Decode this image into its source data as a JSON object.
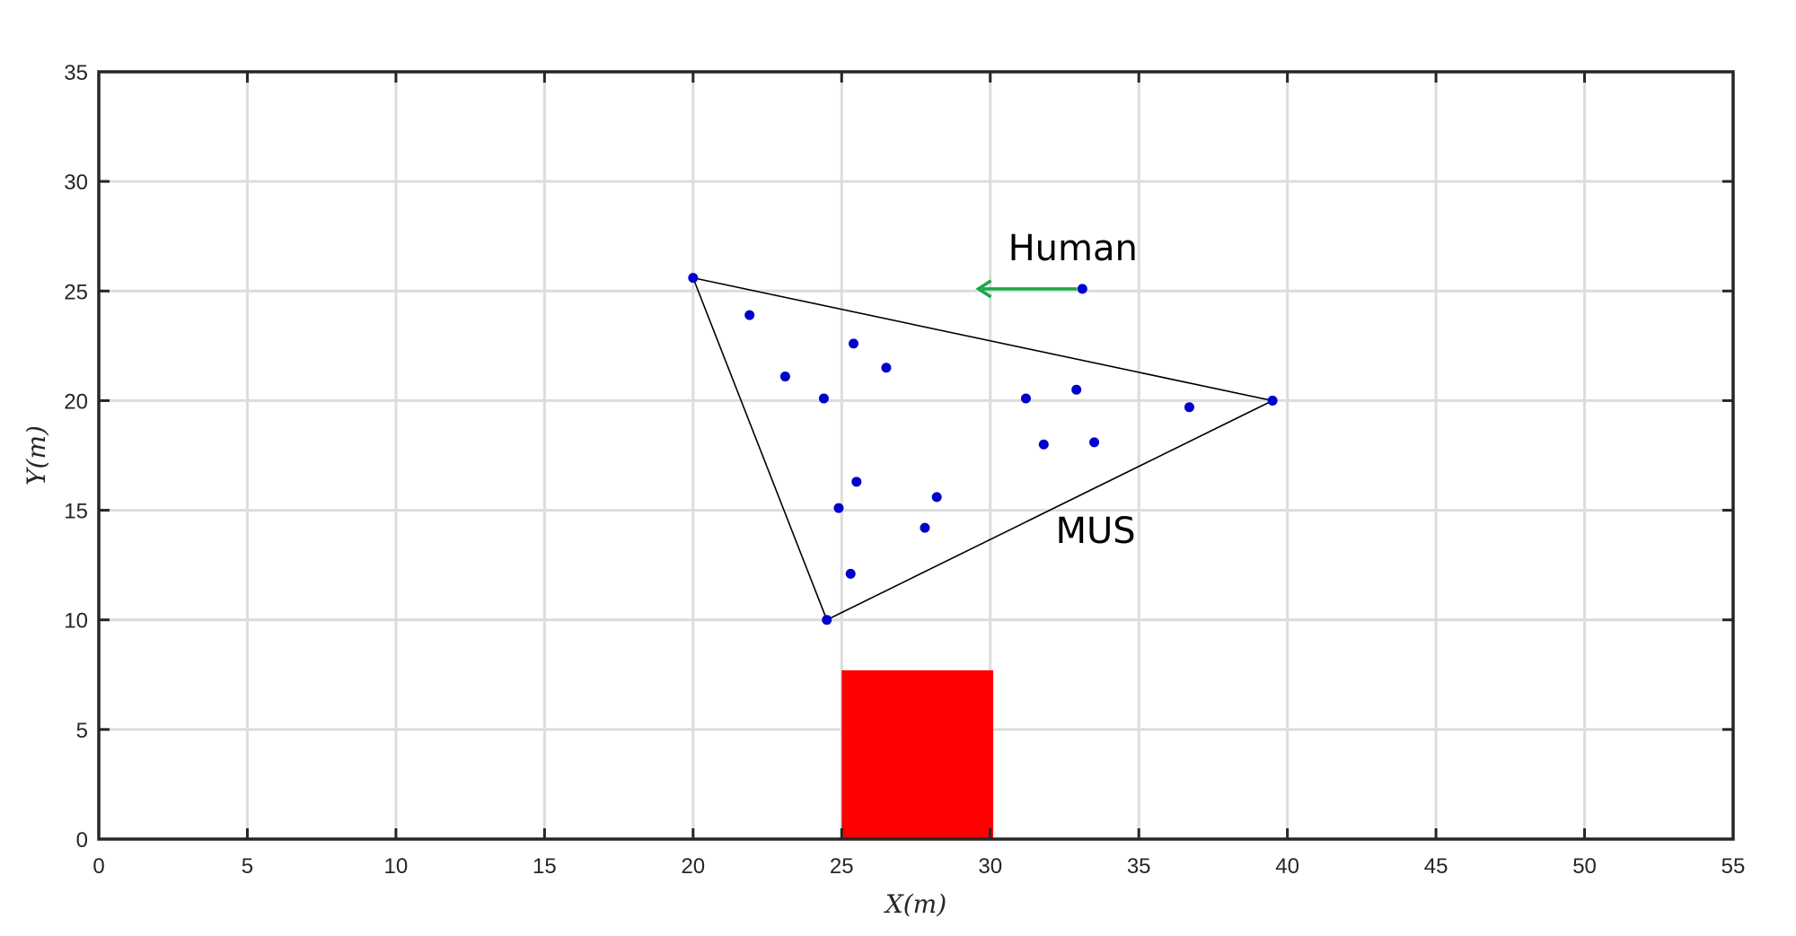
{
  "chart_data": {
    "type": "scatter",
    "xlabel": "X(m)",
    "ylabel": "Y(m)",
    "xlim": [
      0,
      55
    ],
    "ylim": [
      0,
      35
    ],
    "xticks": [
      0,
      5,
      10,
      15,
      20,
      25,
      30,
      35,
      40,
      45,
      50,
      55
    ],
    "yticks": [
      0,
      5,
      10,
      15,
      20,
      25,
      30,
      35
    ],
    "grid": true,
    "point_color": "#0000cc",
    "triangle_color": "#000000",
    "arrow_color": "#1aa84a",
    "obstacle_color": "#ff0000",
    "triangle_vertices": [
      {
        "x": 20.0,
        "y": 25.6
      },
      {
        "x": 39.5,
        "y": 20.0
      },
      {
        "x": 24.5,
        "y": 10.0
      }
    ],
    "points": [
      {
        "x": 20.0,
        "y": 25.6
      },
      {
        "x": 39.5,
        "y": 20.0
      },
      {
        "x": 24.5,
        "y": 10.0
      },
      {
        "x": 21.9,
        "y": 23.9
      },
      {
        "x": 25.4,
        "y": 22.6
      },
      {
        "x": 26.5,
        "y": 21.5
      },
      {
        "x": 23.1,
        "y": 21.1
      },
      {
        "x": 24.4,
        "y": 20.1
      },
      {
        "x": 31.2,
        "y": 20.1
      },
      {
        "x": 32.9,
        "y": 20.5
      },
      {
        "x": 36.7,
        "y": 19.7
      },
      {
        "x": 31.8,
        "y": 18.0
      },
      {
        "x": 33.5,
        "y": 18.1
      },
      {
        "x": 25.5,
        "y": 16.3
      },
      {
        "x": 24.9,
        "y": 15.1
      },
      {
        "x": 28.2,
        "y": 15.6
      },
      {
        "x": 27.8,
        "y": 14.2
      },
      {
        "x": 25.3,
        "y": 12.1
      }
    ],
    "human": {
      "label": "Human",
      "x": 33.1,
      "y": 25.1,
      "arrow_to": {
        "x": 29.6,
        "y": 25.1
      }
    },
    "mus_label": "MUS",
    "mus_label_pos": {
      "x": 32.2,
      "y": 13.5
    },
    "human_label_pos": {
      "x": 30.6,
      "y": 26.4
    },
    "obstacle": {
      "x0": 25.0,
      "x1": 30.1,
      "y0": 0.0,
      "y1": 7.7
    }
  }
}
